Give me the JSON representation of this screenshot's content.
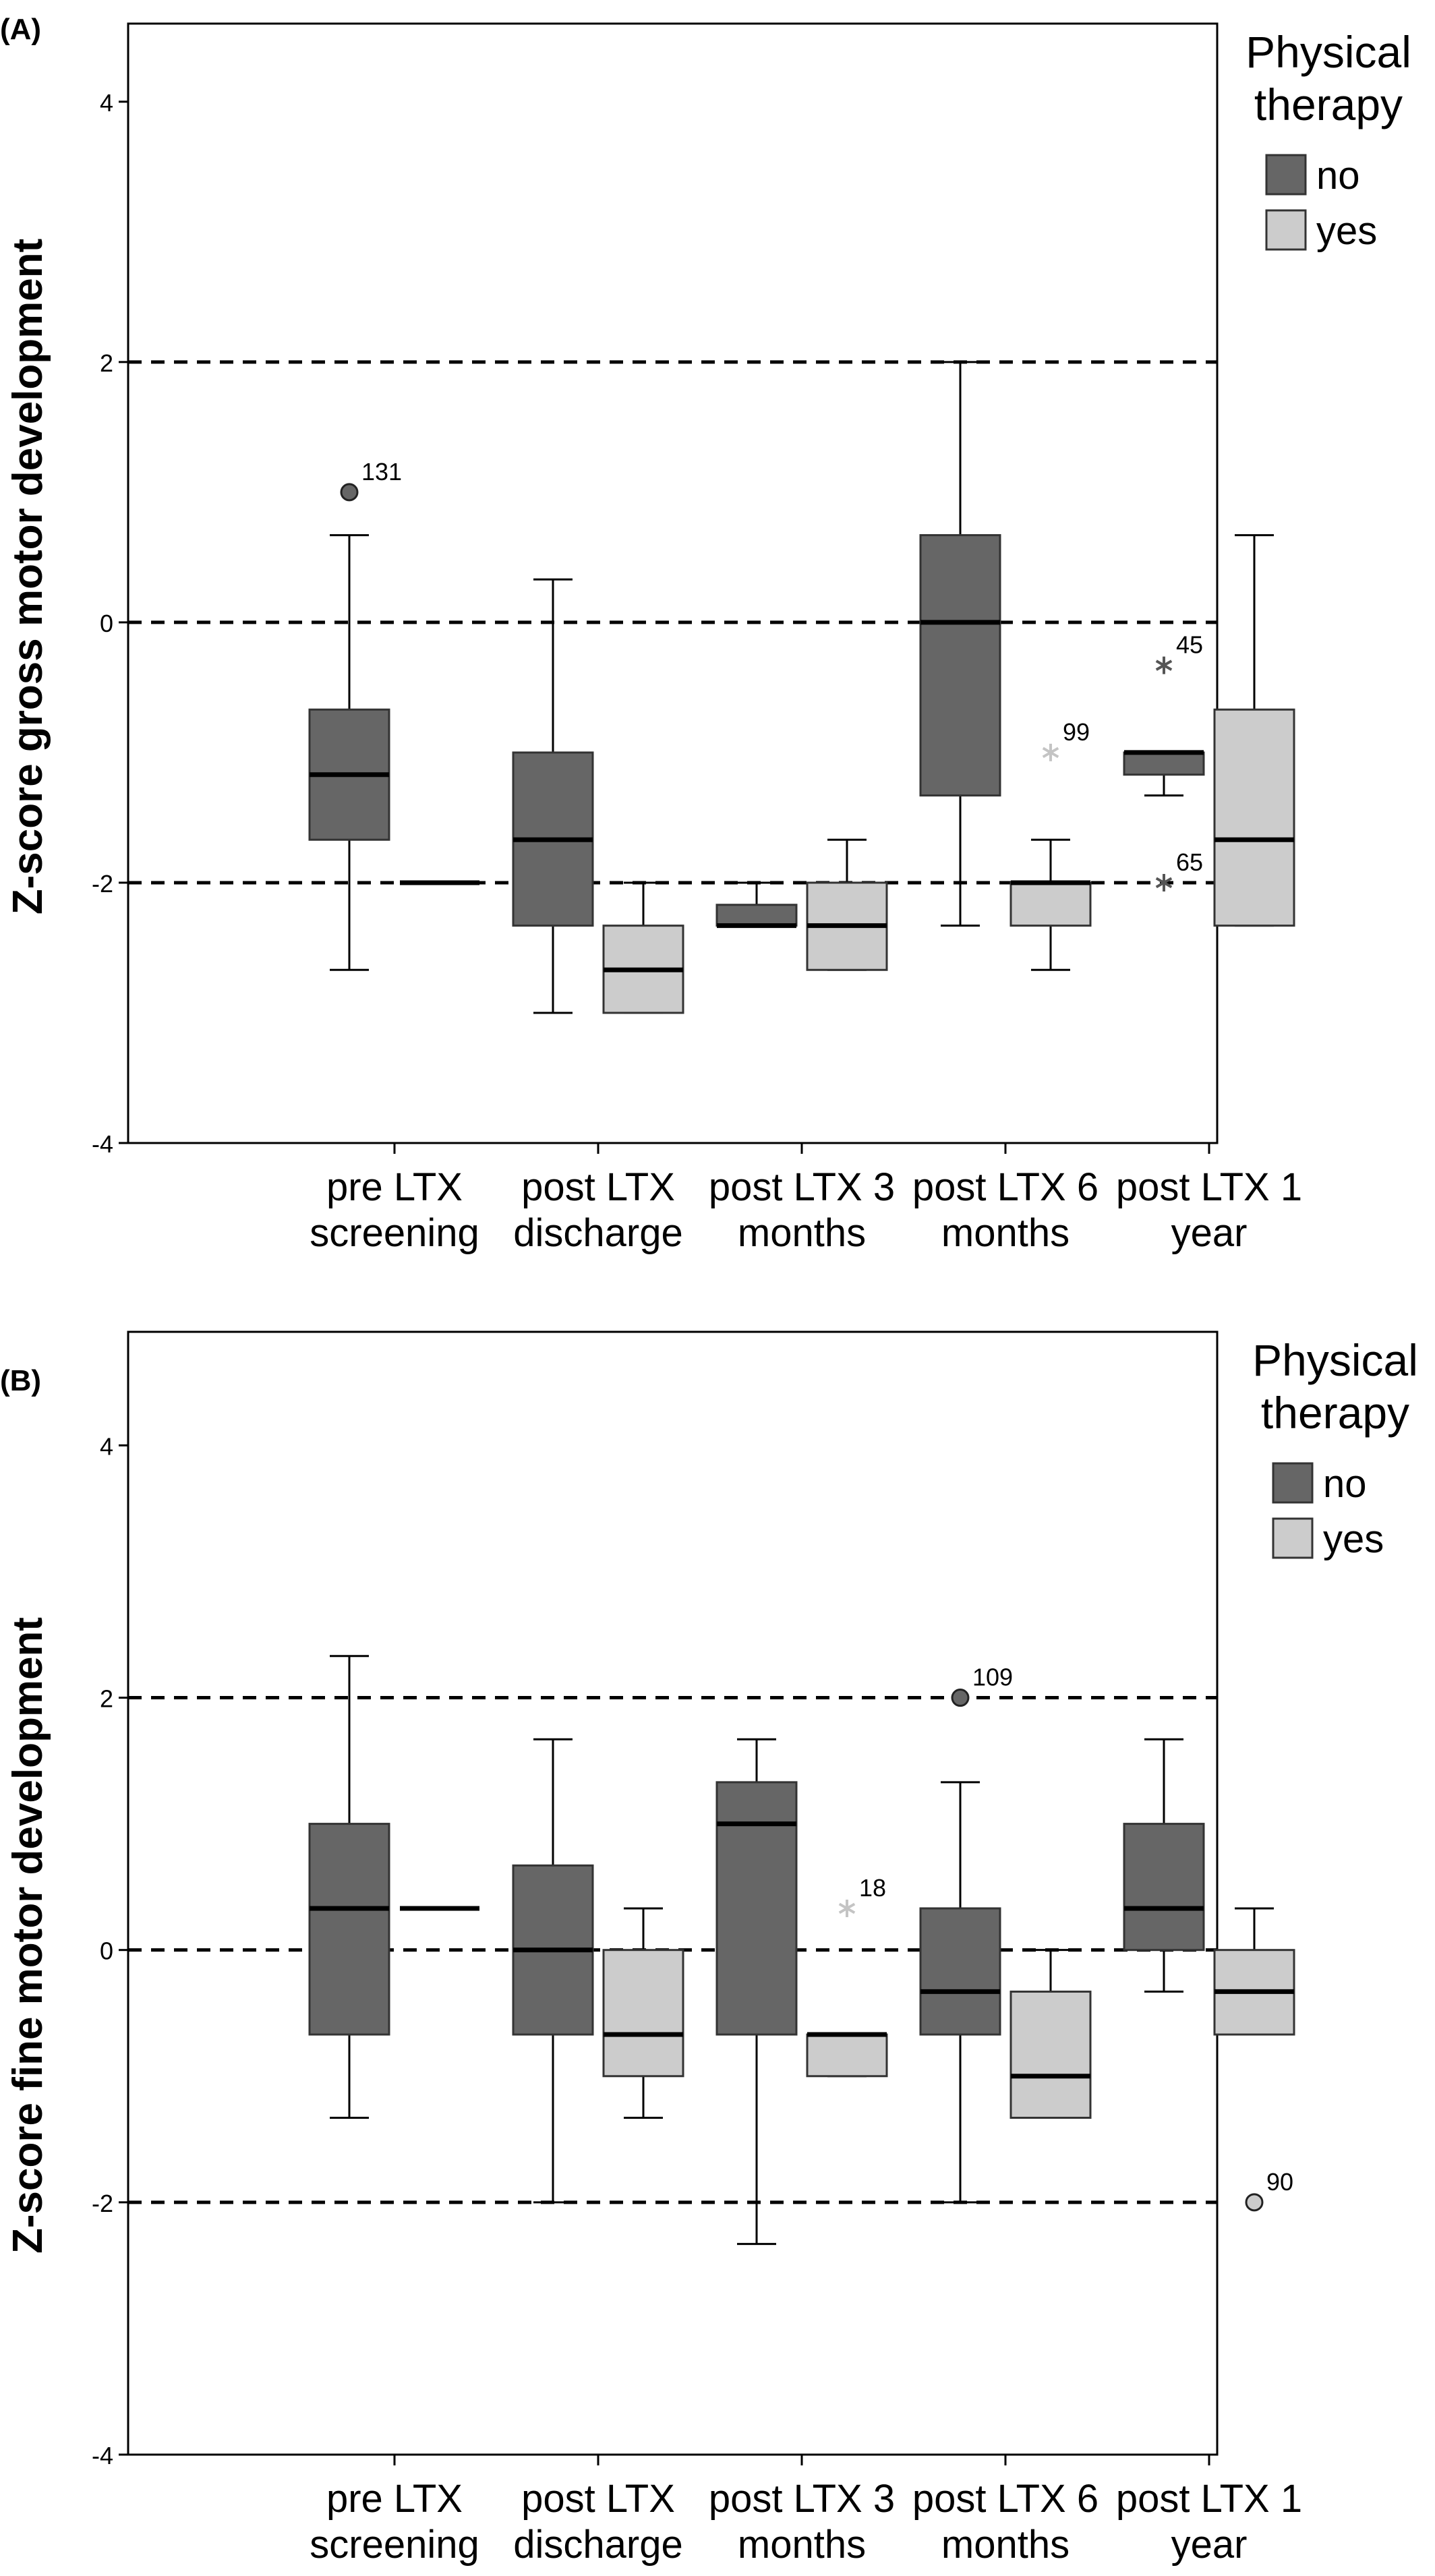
{
  "chart_data": [
    {
      "type": "boxplot",
      "panel_label": "(A)",
      "ylabel": "Z-score gross motor development",
      "ylim": [
        -4,
        4.6
      ],
      "yticks": [
        -4,
        -2,
        0,
        2,
        4
      ],
      "reference_lines": [
        2,
        0,
        -2
      ],
      "categories": [
        "pre LTX screening",
        "post LTX discharge",
        "post LTX 3 months",
        "post LTX 6 months",
        "post LTX 1 year"
      ],
      "category_lines": [
        [
          "pre LTX",
          "screening"
        ],
        [
          "post LTX",
          "discharge"
        ],
        [
          "post LTX 3",
          "months"
        ],
        [
          "post LTX 6",
          "months"
        ],
        [
          "post LTX 1",
          "year"
        ]
      ],
      "legend": {
        "title_lines": [
          "Physical",
          "therapy"
        ],
        "placement": "right",
        "entries": [
          "no",
          "yes"
        ]
      },
      "colors": {
        "no": "#666666",
        "yes": "#cccccc"
      },
      "series": [
        {
          "name": "no",
          "boxes": [
            {
              "min": -2.67,
              "q1": -1.67,
              "median": -1.17,
              "q3": -0.67,
              "max": 0.67
            },
            {
              "min": -3.0,
              "q1": -2.33,
              "median": -1.67,
              "q3": -1.0,
              "max": 0.33
            },
            {
              "min": -2.33,
              "q1": -2.33,
              "median": -2.33,
              "q3": -2.17,
              "max": -2.0
            },
            {
              "min": -2.33,
              "q1": -1.33,
              "median": 0.0,
              "q3": 0.67,
              "max": 2.0
            },
            {
              "min": -1.33,
              "q1": -1.17,
              "median": -1.0,
              "q3": -1.0,
              "max": -1.0
            }
          ]
        },
        {
          "name": "yes",
          "boxes": [
            {
              "min": -2.0,
              "q1": -2.0,
              "median": -2.0,
              "q3": -2.0,
              "max": -2.0
            },
            {
              "min": -3.0,
              "q1": -3.0,
              "median": -2.67,
              "q3": -2.33,
              "max": -2.0
            },
            {
              "min": -2.67,
              "q1": -2.67,
              "median": -2.33,
              "q3": -2.0,
              "max": -1.67
            },
            {
              "min": -2.67,
              "q1": -2.33,
              "median": -2.0,
              "q3": -2.0,
              "max": -1.67
            },
            {
              "min": -2.33,
              "q1": -2.33,
              "median": -1.67,
              "q3": -0.67,
              "max": 0.67
            }
          ]
        }
      ],
      "outliers": [
        {
          "category": 0,
          "series": "no",
          "y": 1.0,
          "marker": "circle",
          "label": "131"
        },
        {
          "category": 3,
          "series": "yes",
          "y": -1.0,
          "marker": "star",
          "label": "99"
        },
        {
          "category": 4,
          "series": "no",
          "y": -0.33,
          "marker": "star",
          "label": "45"
        },
        {
          "category": 4,
          "series": "no",
          "y": -2.0,
          "marker": "star",
          "label": "65"
        }
      ]
    },
    {
      "type": "boxplot",
      "panel_label": "(B)",
      "ylabel": "Z-score fine motor development",
      "ylim": [
        -4,
        4.9
      ],
      "yticks": [
        -4,
        -2,
        0,
        2,
        4
      ],
      "reference_lines": [
        2,
        0,
        -2
      ],
      "categories": [
        "pre LTX screening",
        "post LTX discharge",
        "post LTX 3 months",
        "post LTX 6 months",
        "post LTX 1 year"
      ],
      "category_lines": [
        [
          "pre LTX",
          "screening"
        ],
        [
          "post LTX",
          "discharge"
        ],
        [
          "post LTX 3",
          "months"
        ],
        [
          "post LTX 6",
          "months"
        ],
        [
          "post LTX 1",
          "year"
        ]
      ],
      "legend": {
        "title_lines": [
          "Physical",
          "therapy"
        ],
        "placement": "right",
        "entries": [
          "no",
          "yes"
        ]
      },
      "colors": {
        "no": "#666666",
        "yes": "#cccccc"
      },
      "series": [
        {
          "name": "no",
          "boxes": [
            {
              "min": -1.33,
              "q1": -0.67,
              "median": 0.33,
              "q3": 1.0,
              "max": 2.33
            },
            {
              "min": -2.0,
              "q1": -0.67,
              "median": 0.0,
              "q3": 0.67,
              "max": 1.67
            },
            {
              "min": -2.33,
              "q1": -0.67,
              "median": 1.0,
              "q3": 1.33,
              "max": 1.67
            },
            {
              "min": -2.0,
              "q1": -0.67,
              "median": -0.33,
              "q3": 0.33,
              "max": 1.33
            },
            {
              "min": -0.33,
              "q1": 0.0,
              "median": 0.33,
              "q3": 1.0,
              "max": 1.67
            }
          ]
        },
        {
          "name": "yes",
          "boxes": [
            {
              "min": 0.33,
              "q1": 0.33,
              "median": 0.33,
              "q3": 0.33,
              "max": 0.33
            },
            {
              "min": -1.33,
              "q1": -1.0,
              "median": -0.67,
              "q3": 0.0,
              "max": 0.33
            },
            {
              "min": -1.0,
              "q1": -1.0,
              "median": -0.67,
              "q3": -0.67,
              "max": -0.67
            },
            {
              "min": -1.33,
              "q1": -1.33,
              "median": -1.0,
              "q3": -0.33,
              "max": 0.0
            },
            {
              "min": -0.67,
              "q1": -0.67,
              "median": -0.33,
              "q3": 0.0,
              "max": 0.33
            }
          ]
        }
      ],
      "outliers": [
        {
          "category": 2,
          "series": "yes",
          "y": 0.33,
          "marker": "star",
          "label": "18"
        },
        {
          "category": 3,
          "series": "no",
          "y": 2.0,
          "marker": "circle",
          "label": "109"
        },
        {
          "category": 4,
          "series": "yes",
          "y": -2.0,
          "marker": "circle",
          "label": "90"
        }
      ]
    }
  ]
}
